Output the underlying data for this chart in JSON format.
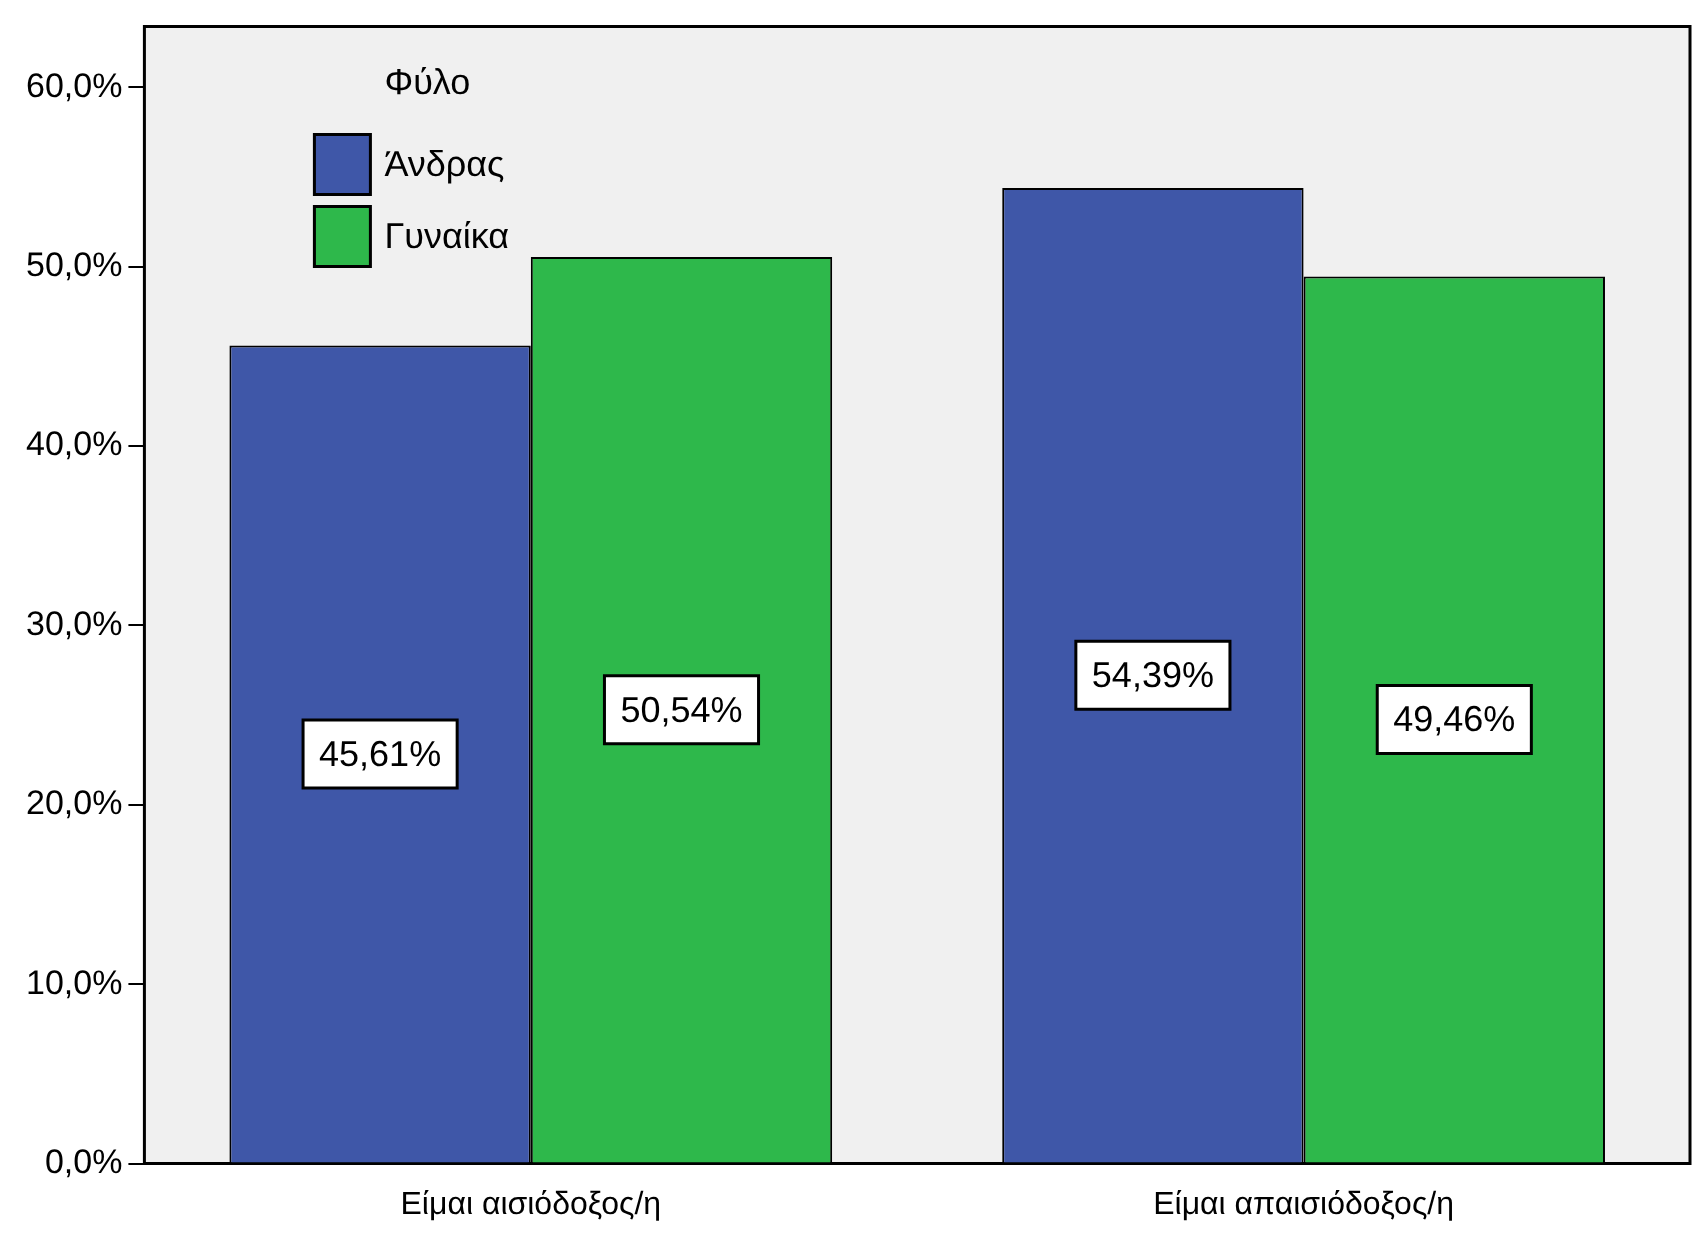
{
  "chart_data": {
    "type": "bar",
    "categories": [
      "Είμαι αισιόδοξος/η",
      "Είμαι απαισιόδοξος/η"
    ],
    "series": [
      {
        "name": "Άνδρας",
        "color": "#3f57a8",
        "values": [
          45.61,
          54.39
        ],
        "value_labels": [
          "45,61%",
          "54,39%"
        ]
      },
      {
        "name": "Γυναίκα",
        "color": "#2eb84b",
        "values": [
          50.54,
          49.46
        ],
        "value_labels": [
          "50,54%",
          "49,46%"
        ]
      }
    ],
    "ylim": [
      0,
      63.4
    ],
    "yticks": [
      {
        "value": 0,
        "label": "0,0%"
      },
      {
        "value": 10,
        "label": "10,0%"
      },
      {
        "value": 20,
        "label": "20,0%"
      },
      {
        "value": 30,
        "label": "30,0%"
      },
      {
        "value": 40,
        "label": "40,0%"
      },
      {
        "value": 50,
        "label": "50,0%"
      },
      {
        "value": 60,
        "label": "60,0%"
      }
    ],
    "legend": "top left",
    "legend_title": "Φύλο",
    "grid": false
  }
}
